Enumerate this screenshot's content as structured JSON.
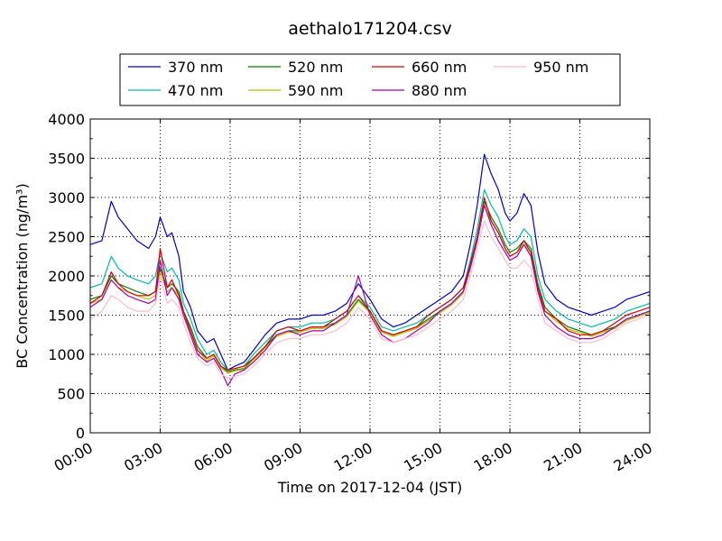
{
  "chart_data": {
    "type": "line",
    "title": "aethalo171204.csv",
    "xlabel": "Time on 2017-12-04 (JST)",
    "ylabel": "BC Concentration (ng/m³)",
    "ylim": [
      0,
      4000
    ],
    "xlim": [
      0,
      24
    ],
    "yticks": [
      0,
      500,
      1000,
      1500,
      2000,
      2500,
      3000,
      3500,
      4000
    ],
    "xticks": [
      0,
      3,
      6,
      9,
      12,
      15,
      18,
      21,
      24
    ],
    "xtick_labels": [
      "00:00",
      "03:00",
      "06:00",
      "09:00",
      "12:00",
      "15:00",
      "18:00",
      "21:00",
      "24:00"
    ],
    "grid": true,
    "legend_position": "top",
    "x": [
      0,
      0.5,
      0.9,
      1.2,
      1.6,
      2,
      2.5,
      2.8,
      3,
      3.3,
      3.5,
      3.8,
      4,
      4.3,
      4.6,
      5,
      5.3,
      5.6,
      5.9,
      6.2,
      6.6,
      7,
      7.5,
      8,
      8.5,
      9,
      9.5,
      10,
      10.5,
      11,
      11.5,
      12,
      12.5,
      13,
      13.5,
      14,
      14.5,
      15,
      15.5,
      16,
      16.3,
      16.6,
      16.9,
      17.2,
      17.5,
      17.8,
      18,
      18.3,
      18.6,
      18.9,
      19.2,
      19.5,
      20,
      20.5,
      21,
      21.5,
      22,
      22.5,
      23,
      23.5,
      24
    ],
    "series": [
      {
        "name": "370 nm",
        "color": "#0000cc",
        "values": [
          2400,
          2450,
          2950,
          2750,
          2600,
          2450,
          2350,
          2500,
          2750,
          2500,
          2550,
          2250,
          1800,
          1600,
          1300,
          1150,
          1200,
          1000,
          800,
          850,
          900,
          1050,
          1250,
          1400,
          1450,
          1450,
          1500,
          1500,
          1550,
          1650,
          1900,
          1700,
          1450,
          1350,
          1400,
          1500,
          1600,
          1700,
          1800,
          2000,
          2400,
          2900,
          3550,
          3300,
          3100,
          2800,
          2700,
          2800,
          3050,
          2900,
          2300,
          1900,
          1700,
          1600,
          1550,
          1500,
          1550,
          1600,
          1700,
          1750,
          1800
        ]
      },
      {
        "name": "470 nm",
        "color": "#00bbaa",
        "values": [
          1850,
          1900,
          2250,
          2100,
          2000,
          1950,
          1900,
          2000,
          2300,
          2050,
          2100,
          1950,
          1650,
          1450,
          1200,
          1000,
          1050,
          900,
          800,
          820,
          850,
          1000,
          1150,
          1300,
          1350,
          1350,
          1400,
          1400,
          1450,
          1550,
          1750,
          1600,
          1350,
          1300,
          1350,
          1400,
          1500,
          1600,
          1700,
          1850,
          2200,
          2600,
          3100,
          2900,
          2750,
          2500,
          2400,
          2450,
          2600,
          2500,
          2000,
          1700,
          1550,
          1450,
          1400,
          1350,
          1400,
          1450,
          1550,
          1600,
          1650
        ]
      },
      {
        "name": "520 nm",
        "color": "#008000",
        "values": [
          1700,
          1750,
          2000,
          1900,
          1850,
          1800,
          1750,
          1800,
          2100,
          1850,
          1900,
          1800,
          1550,
          1350,
          1100,
          950,
          1000,
          850,
          780,
          800,
          820,
          950,
          1100,
          1250,
          1300,
          1300,
          1350,
          1350,
          1400,
          1500,
          1700,
          1550,
          1300,
          1250,
          1300,
          1350,
          1450,
          1550,
          1650,
          1800,
          2150,
          2500,
          2950,
          2750,
          2600,
          2400,
          2300,
          2350,
          2450,
          2350,
          1900,
          1600,
          1450,
          1350,
          1300,
          1250,
          1300,
          1350,
          1450,
          1500,
          1550
        ]
      },
      {
        "name": "590 nm",
        "color": "#bbbb00",
        "values": [
          1650,
          1700,
          1950,
          1850,
          1800,
          1750,
          1700,
          1750,
          2050,
          1800,
          1850,
          1750,
          1500,
          1300,
          1050,
          920,
          980,
          830,
          760,
          790,
          810,
          930,
          1080,
          1230,
          1280,
          1280,
          1330,
          1330,
          1380,
          1480,
          1680,
          1530,
          1280,
          1230,
          1280,
          1330,
          1430,
          1530,
          1630,
          1780,
          2100,
          2450,
          2900,
          2700,
          2550,
          2350,
          2250,
          2300,
          2400,
          2300,
          1850,
          1550,
          1420,
          1320,
          1280,
          1230,
          1280,
          1330,
          1430,
          1480,
          1530
        ]
      },
      {
        "name": "660 nm",
        "color": "#dd0000",
        "values": [
          1650,
          1750,
          2050,
          1900,
          1800,
          1750,
          1750,
          1800,
          2350,
          1850,
          1950,
          1750,
          1550,
          1300,
          1050,
          950,
          1000,
          850,
          800,
          820,
          850,
          950,
          1100,
          1300,
          1350,
          1300,
          1350,
          1350,
          1450,
          1550,
          1750,
          1550,
          1300,
          1250,
          1300,
          1350,
          1500,
          1600,
          1700,
          1850,
          2150,
          2500,
          3000,
          2700,
          2550,
          2350,
          2250,
          2300,
          2450,
          2300,
          1850,
          1550,
          1450,
          1300,
          1250,
          1250,
          1300,
          1400,
          1500,
          1550,
          1600
        ]
      },
      {
        "name": "880 nm",
        "color": "#aa00aa",
        "values": [
          1600,
          1700,
          1950,
          1850,
          1750,
          1700,
          1650,
          1700,
          2200,
          1750,
          1850,
          1700,
          1500,
          1250,
          1000,
          900,
          950,
          800,
          600,
          750,
          800,
          900,
          1050,
          1250,
          1300,
          1250,
          1300,
          1300,
          1400,
          1500,
          2000,
          1500,
          1250,
          1150,
          1200,
          1300,
          1400,
          1550,
          1650,
          1800,
          2100,
          2450,
          2900,
          2650,
          2450,
          2300,
          2200,
          2250,
          2400,
          2250,
          1800,
          1500,
          1350,
          1250,
          1200,
          1200,
          1250,
          1350,
          1450,
          1500,
          1550
        ]
      },
      {
        "name": "950 nm",
        "color": "#ffbbcc",
        "values": [
          1450,
          1550,
          1750,
          1700,
          1600,
          1550,
          1550,
          1650,
          2000,
          1650,
          1700,
          1600,
          1400,
          1150,
          950,
          850,
          900,
          750,
          700,
          720,
          750,
          850,
          1000,
          1150,
          1200,
          1200,
          1250,
          1250,
          1300,
          1400,
          1600,
          1450,
          1200,
          1150,
          1200,
          1250,
          1350,
          1450,
          1550,
          1700,
          2000,
          2350,
          2700,
          2500,
          2350,
          2200,
          2100,
          2100,
          2200,
          2100,
          1700,
          1400,
          1300,
          1200,
          1150,
          1150,
          1200,
          1300,
          1400,
          1450,
          1500
        ]
      }
    ]
  }
}
